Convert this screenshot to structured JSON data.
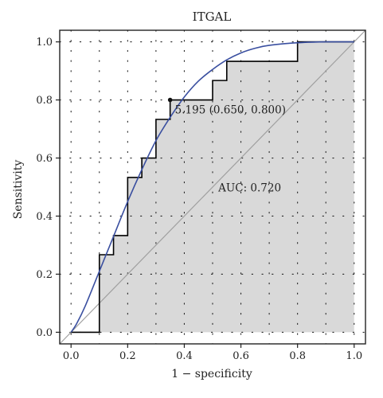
{
  "chart_data": {
    "type": "line",
    "title": "ITGAL",
    "xlabel": "1 − specificity",
    "ylabel": "Sensitivity",
    "xlim": [
      -0.04,
      1.04
    ],
    "ylim": [
      -0.04,
      1.04
    ],
    "x_ticks": [
      "0.0",
      "0.2",
      "0.4",
      "0.6",
      "0.8",
      "1.0"
    ],
    "y_ticks": [
      "0.0",
      "0.2",
      "0.4",
      "0.6",
      "0.8",
      "1.0"
    ],
    "grid": "dotted",
    "series": [
      {
        "kind": "empirical-roc-step",
        "color": "#000000",
        "points": [
          [
            0.0,
            0.0
          ],
          [
            0.1,
            0.0
          ],
          [
            0.1,
            0.267
          ],
          [
            0.15,
            0.267
          ],
          [
            0.15,
            0.333
          ],
          [
            0.2,
            0.333
          ],
          [
            0.2,
            0.533
          ],
          [
            0.25,
            0.533
          ],
          [
            0.25,
            0.6
          ],
          [
            0.3,
            0.6
          ],
          [
            0.3,
            0.733
          ],
          [
            0.35,
            0.733
          ],
          [
            0.35,
            0.8
          ],
          [
            0.5,
            0.8
          ],
          [
            0.5,
            0.867
          ],
          [
            0.55,
            0.867
          ],
          [
            0.55,
            0.933
          ],
          [
            0.8,
            0.933
          ],
          [
            0.8,
            1.0
          ],
          [
            1.0,
            1.0
          ]
        ]
      },
      {
        "kind": "smoothed-roc",
        "color": "#3a4fa0",
        "points": [
          [
            0.0,
            0.0
          ],
          [
            0.02,
            0.03
          ],
          [
            0.05,
            0.09
          ],
          [
            0.1,
            0.21
          ],
          [
            0.15,
            0.33
          ],
          [
            0.2,
            0.45
          ],
          [
            0.25,
            0.56
          ],
          [
            0.3,
            0.66
          ],
          [
            0.35,
            0.74
          ],
          [
            0.4,
            0.81
          ],
          [
            0.45,
            0.865
          ],
          [
            0.5,
            0.905
          ],
          [
            0.55,
            0.938
          ],
          [
            0.6,
            0.962
          ],
          [
            0.65,
            0.978
          ],
          [
            0.7,
            0.988
          ],
          [
            0.8,
            0.997
          ],
          [
            0.9,
            1.0
          ],
          [
            1.0,
            1.0
          ]
        ]
      },
      {
        "kind": "reference-diagonal",
        "color": "#a0a0a0",
        "points": [
          [
            -0.04,
            -0.04
          ],
          [
            1.04,
            1.04
          ]
        ]
      }
    ],
    "fill_color": "#d9d9d9",
    "best_threshold": {
      "x": 0.35,
      "y": 0.8,
      "label": "5.195 (0.650, 0.800)"
    },
    "auc_label": "AUC: 0.720"
  }
}
